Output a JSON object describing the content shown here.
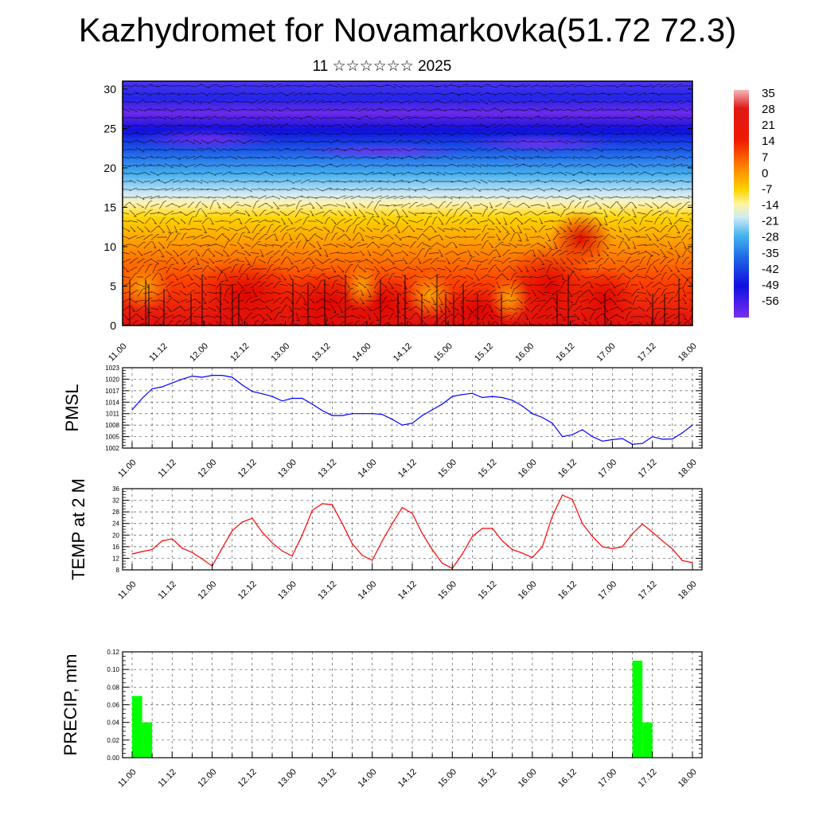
{
  "header": {
    "title": "Kazhydromet for Novamarkovka(51.72 72.3)",
    "subtitle": "11 ☆☆☆☆☆☆ 2025"
  },
  "colors": {
    "pmsl_line": "#0000ff",
    "temp_line": "#ff0000",
    "precip_bar": "#00ff00",
    "grid": "#555555"
  },
  "chart_data": [
    {
      "type": "heatmap",
      "title": "",
      "xlabel": "",
      "ylabel": "",
      "x_ticks": [
        "11.00",
        "11.12",
        "12.00",
        "12.12",
        "13.00",
        "13.12",
        "14.00",
        "14.12",
        "15.00",
        "15.12",
        "16.00",
        "16.12",
        "17.00",
        "17.12",
        "18.00"
      ],
      "y_ticks": [
        0,
        5,
        10,
        15,
        20,
        25,
        30
      ],
      "ylim": [
        0,
        31
      ],
      "colorbar_labels": [
        "35",
        "28",
        "21",
        "14",
        "7",
        "0",
        "-7",
        "-14",
        "-21",
        "-28",
        "-35",
        "-42",
        "-49",
        "-56"
      ],
      "colorbar_range": [
        -63,
        38
      ],
      "overlay": "wind barbs"
    },
    {
      "type": "line",
      "ylabel": "PMSL",
      "x_ticks": [
        "11.00",
        "11.12",
        "12.00",
        "12.12",
        "13.00",
        "13.12",
        "14.00",
        "14.12",
        "15.00",
        "15.12",
        "16.00",
        "16.12",
        "17.00",
        "17.12",
        "18.00"
      ],
      "y_ticks": [
        1002,
        1005,
        1008,
        1011,
        1014,
        1017,
        1020,
        1023
      ],
      "ylim": [
        1002,
        1023
      ],
      "x": [
        0,
        3,
        6,
        9,
        12,
        15,
        18,
        21,
        24,
        27,
        30,
        33,
        36,
        39,
        42,
        45,
        48,
        51,
        54,
        57,
        60,
        63,
        66,
        69,
        72,
        75,
        78,
        81,
        84,
        87,
        90,
        93,
        96,
        99,
        102,
        105,
        108,
        111,
        114,
        117,
        120,
        123,
        126,
        129,
        132,
        135,
        138,
        141,
        144,
        147,
        150,
        153,
        156,
        159,
        162,
        165,
        168
      ],
      "values": [
        1012,
        1015,
        1017.5,
        1018,
        1019,
        1020,
        1020.8,
        1020.5,
        1021,
        1021,
        1020.5,
        1018.5,
        1016.8,
        1016.2,
        1015.5,
        1014.3,
        1015,
        1015,
        1013.5,
        1011.8,
        1010.5,
        1010.5,
        1011,
        1011,
        1011,
        1010.8,
        1009.5,
        1008,
        1008.5,
        1010.5,
        1012,
        1013.5,
        1015.5,
        1016,
        1016.3,
        1015.2,
        1015.5,
        1015.2,
        1014.5,
        1013,
        1011,
        1010,
        1008.5,
        1005,
        1005.5,
        1006.8,
        1005,
        1003.8,
        1004.2,
        1004.5,
        1003,
        1003.2,
        1005,
        1004.3,
        1004.4,
        1006,
        1008
      ]
    },
    {
      "type": "line",
      "ylabel": "TEMP at 2 M",
      "x_ticks": [
        "11.00",
        "11.12",
        "12.00",
        "12.12",
        "13.00",
        "13.12",
        "14.00",
        "14.12",
        "15.00",
        "15.12",
        "16.00",
        "16.12",
        "17.00",
        "17.12",
        "18.00"
      ],
      "y_ticks": [
        8,
        12,
        16,
        20,
        24,
        28,
        32,
        36
      ],
      "ylim": [
        8,
        36
      ],
      "x": [
        0,
        3,
        6,
        9,
        12,
        15,
        18,
        21,
        24,
        27,
        30,
        33,
        36,
        39,
        42,
        45,
        48,
        51,
        54,
        57,
        60,
        63,
        66,
        69,
        72,
        75,
        78,
        81,
        84,
        87,
        90,
        93,
        96,
        99,
        102,
        105,
        108,
        111,
        114,
        117,
        120,
        123,
        126,
        129,
        132,
        135,
        138,
        141,
        144,
        147,
        150,
        153,
        156,
        159,
        162,
        165,
        168
      ],
      "values": [
        13.5,
        14.3,
        15,
        18,
        18.7,
        15.5,
        14,
        11.8,
        9.3,
        15.5,
        21.5,
        24.5,
        25.8,
        21,
        17.3,
        14.5,
        12.8,
        20,
        28.5,
        30.8,
        30.5,
        24,
        17,
        13,
        11.3,
        18,
        24,
        29.5,
        27.5,
        20.5,
        15,
        10.3,
        8.5,
        13.5,
        19.5,
        22.3,
        22.3,
        18,
        15,
        13.8,
        12.2,
        16,
        26.5,
        33.8,
        32.3,
        24,
        19.5,
        16,
        15.3,
        16,
        20.5,
        23.8,
        21,
        18,
        15.2,
        11.2,
        10.5
      ]
    },
    {
      "type": "bar",
      "ylabel": "PRECIP, mm",
      "x_ticks": [
        "11.00",
        "11.12",
        "12.00",
        "12.12",
        "13.00",
        "13.12",
        "14.00",
        "14.12",
        "15.00",
        "15.12",
        "16.00",
        "16.12",
        "17.00",
        "17.12",
        "18.00"
      ],
      "y_ticks": [
        "0.00",
        "0.02",
        "0.04",
        "0.06",
        "0.08",
        "0.10",
        "0.12"
      ],
      "ylim": [
        0,
        0.12
      ],
      "x": [
        0,
        3,
        150,
        153
      ],
      "values": [
        0.07,
        0.04,
        0.11,
        0.04
      ]
    }
  ]
}
